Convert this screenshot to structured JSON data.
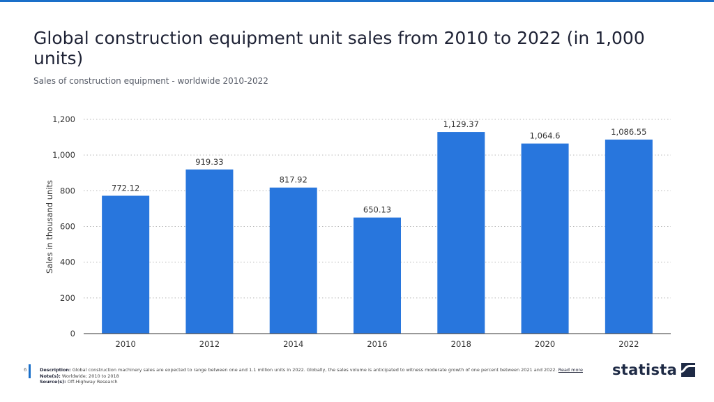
{
  "header": {
    "title": "Global construction equipment unit sales from 2010 to 2022 (in 1,000 units)",
    "subtitle": "Sales of construction equipment - worldwide 2010-2022"
  },
  "chart_data": {
    "type": "bar",
    "categories": [
      "2010",
      "2012",
      "2014",
      "2016",
      "2018",
      "2020",
      "2022"
    ],
    "values": [
      772.12,
      919.33,
      817.92,
      650.13,
      1129.37,
      1064.6,
      1086.55
    ],
    "data_labels": [
      "772.12",
      "919.33",
      "817.92",
      "650.13",
      "1,129.37",
      "1,064.6",
      "1,086.55"
    ],
    "ylabel": "Sales in thousand units",
    "xlabel": "",
    "ylim": [
      0,
      1200
    ],
    "yticks": [
      0,
      200,
      400,
      600,
      800,
      1000,
      1200
    ],
    "ytick_labels": [
      "0",
      "200",
      "400",
      "600",
      "800",
      "1,000",
      "1,200"
    ],
    "grid": true,
    "bar_color": "#2876dd"
  },
  "footer": {
    "page_number": "6",
    "description_label": "Description:",
    "description": "Global construction machinery sales are expected to range between one and 1.1 million units in 2022. Globally, the sales volume is anticipated to witness moderate growth of one percent between 2021 and 2022.",
    "read_more": "Read more",
    "notes_label": "Note(s):",
    "notes": "Worldwide; 2010 to 2018",
    "sources_label": "Source(s):",
    "sources": "Off-Highway Research"
  },
  "logo": {
    "text": "statista",
    "color": "#1e2a45"
  },
  "accent_color": "#1a6fc9"
}
